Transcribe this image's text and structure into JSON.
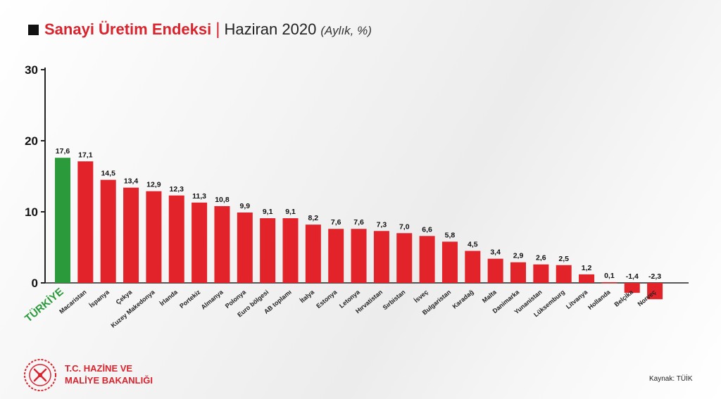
{
  "title": {
    "main": "Sanayi Üretim Endeksi",
    "separator": "|",
    "period": "Haziran 2020",
    "unit": "(Aylık, %)"
  },
  "colors": {
    "highlight": "#2a9a3a",
    "bar": "#e2232a",
    "title_accent": "#d9232d",
    "axis": "#222222"
  },
  "chart_data": {
    "type": "bar",
    "title": "Sanayi Üretim Endeksi | Haziran 2020 (Aylık, %)",
    "xlabel": "",
    "ylabel": "",
    "ylim": [
      -3,
      30
    ],
    "yticks": [
      0,
      10,
      20,
      30
    ],
    "grid": false,
    "highlight_category": "TÜRKİYE",
    "categories": [
      "TÜRKİYE",
      "Macaristan",
      "İspanya",
      "Çekya",
      "Kuzey Makedonya",
      "İrlanda",
      "Portekiz",
      "Almanya",
      "Polonya",
      "Euro bölgesi",
      "AB toplamı",
      "İtalya",
      "Estonya",
      "Letonya",
      "Hırvatistan",
      "Sırbistan",
      "İsveç",
      "Bulgaristan",
      "Karadağ",
      "Malta",
      "Danimarka",
      "Yunanistan",
      "Lüksemburg",
      "Litvanya",
      "Hollanda",
      "Belçika",
      "Norveç"
    ],
    "values": [
      17.6,
      17.1,
      14.5,
      13.4,
      12.9,
      12.3,
      11.3,
      10.8,
      9.9,
      9.1,
      9.1,
      8.2,
      7.6,
      7.6,
      7.3,
      7.0,
      6.6,
      5.8,
      4.5,
      3.4,
      2.9,
      2.6,
      2.5,
      1.2,
      0.1,
      -1.4,
      -2.3
    ],
    "value_labels": [
      "17,6",
      "17,1",
      "14,5",
      "13,4",
      "12,9",
      "12,3",
      "11,3",
      "10,8",
      "9,9",
      "9,1",
      "9,1",
      "8,2",
      "7,6",
      "7,6",
      "7,3",
      "7,0",
      "6,6",
      "5,8",
      "4,5",
      "3,4",
      "2,9",
      "2,6",
      "2,5",
      "1,2",
      "0,1",
      "-1,4",
      "-2,3"
    ]
  },
  "footer": {
    "org_line1": "T.C. HAZİNE VE",
    "org_line2": "MALİYE BAKANLIĞI",
    "source": "Kaynak: TÜİK",
    "logo_icon": "ministry-emblem-icon"
  }
}
